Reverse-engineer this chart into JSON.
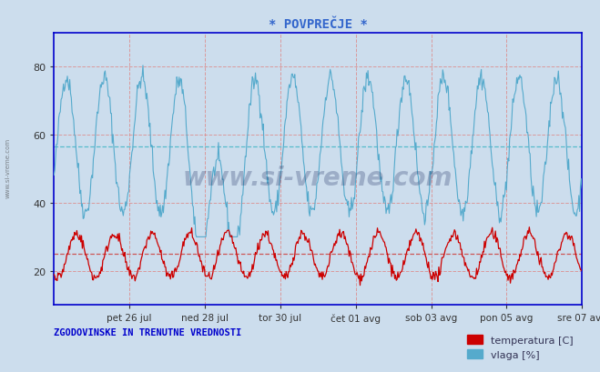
{
  "title": "* POVPREČJE *",
  "bg_color": "#ccdded",
  "plot_bg_color": "#ccdded",
  "temp_color": "#cc0000",
  "humidity_color": "#55aacc",
  "title_color": "#3366cc",
  "spine_color": "#0000cc",
  "grid_h_color": "#dd8888",
  "grid_v_color": "#dd8888",
  "avg_hum_color": "#55bbcc",
  "avg_temp_color": "#cc5555",
  "watermark_text": "www.si-vreme.com",
  "watermark_color": "#223366",
  "watermark_alpha": 0.28,
  "side_text": "www.si-vreme.com",
  "ylim": [
    10,
    90
  ],
  "yticks": [
    20,
    40,
    60,
    80
  ],
  "temp_avg_line": 25.0,
  "hum_avg_line": 56.5,
  "x_tick_labels": [
    "pet 26 jul",
    "ned 28 jul",
    "tor 30 jul",
    "čet 01 avg",
    "sob 03 avg",
    "pon 05 avg",
    "sre 07 avg"
  ],
  "x_tick_day_offsets": [
    2,
    4,
    6,
    8,
    10,
    12,
    14
  ],
  "footer_text": "ZGODOVINSKE IN TRENUTNE VREDNOSTI",
  "legend_temp_label": "temperatura [C]",
  "legend_hum_label": "vlaga [%]",
  "legend_temp_color": "#cc0000",
  "legend_hum_color": "#55aacc",
  "n_points": 672,
  "duration_days": 14
}
